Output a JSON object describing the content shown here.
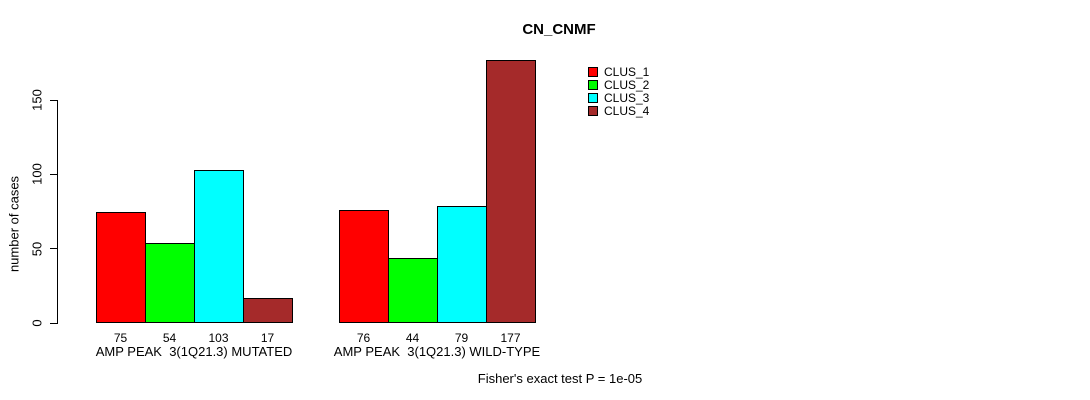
{
  "chart": {
    "title": "CN_CNMF",
    "ylabel": "number of cases",
    "footnote": "Fisher's exact test P = 1e-05"
  },
  "chart_data": {
    "type": "bar",
    "title": "CN_CNMF",
    "xlabel": "",
    "ylabel": "number of cases",
    "categories": [
      "AMP PEAK  3(1Q21.3) MUTATED",
      "AMP PEAK  3(1Q21.3) WILD-TYPE"
    ],
    "series": [
      {
        "name": "CLUS_1",
        "color": "#ff0000",
        "values": [
          75,
          76
        ]
      },
      {
        "name": "CLUS_2",
        "color": "#00ff00",
        "values": [
          54,
          44
        ]
      },
      {
        "name": "CLUS_3",
        "color": "#00ffff",
        "values": [
          103,
          79
        ]
      },
      {
        "name": "CLUS_4",
        "color": "#a52a2a",
        "values": [
          17,
          177
        ]
      }
    ],
    "bar_value_labels_shown": true,
    "y_ticks": [
      0,
      50,
      100,
      150
    ],
    "ylim": [
      0,
      178
    ],
    "grid": false,
    "legend_position": "top-right",
    "legend_entries": [
      "CLUS_1",
      "CLUS_2",
      "CLUS_3",
      "CLUS_4"
    ],
    "annotation": "Fisher's exact test P = 1e-05"
  }
}
